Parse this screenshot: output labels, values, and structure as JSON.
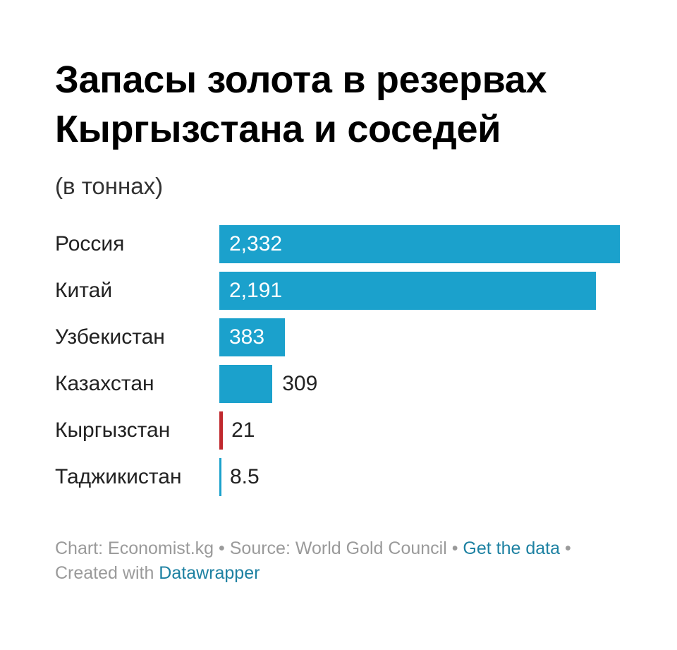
{
  "chart_data": {
    "type": "bar",
    "orientation": "horizontal",
    "title": "Запасы золота в резервах Кыргызстана и соседей",
    "subtitle": "(в тоннах)",
    "categories": [
      "Россия",
      "Китай",
      "Узбекистан",
      "Казахстан",
      "Кыргызстан",
      "Таджикистан"
    ],
    "values": [
      2332,
      2191,
      383,
      309,
      21,
      8.5
    ],
    "value_labels": [
      "2,332",
      "2,191",
      "383",
      "309",
      "21",
      "8.5"
    ],
    "xlim": [
      0,
      2332
    ],
    "grid": false,
    "colors": {
      "default": "#1ba1cc",
      "highlight": "#c0282d",
      "highlight_category": "Кыргызстан"
    }
  },
  "footer": {
    "chart_prefix": "Chart: Economist.kg",
    "separator": " • ",
    "source": "Source: World Gold Council",
    "get_data_link": "Get the data",
    "created_with_prefix": "Created with ",
    "datawrapper_link": "Datawrapper"
  }
}
